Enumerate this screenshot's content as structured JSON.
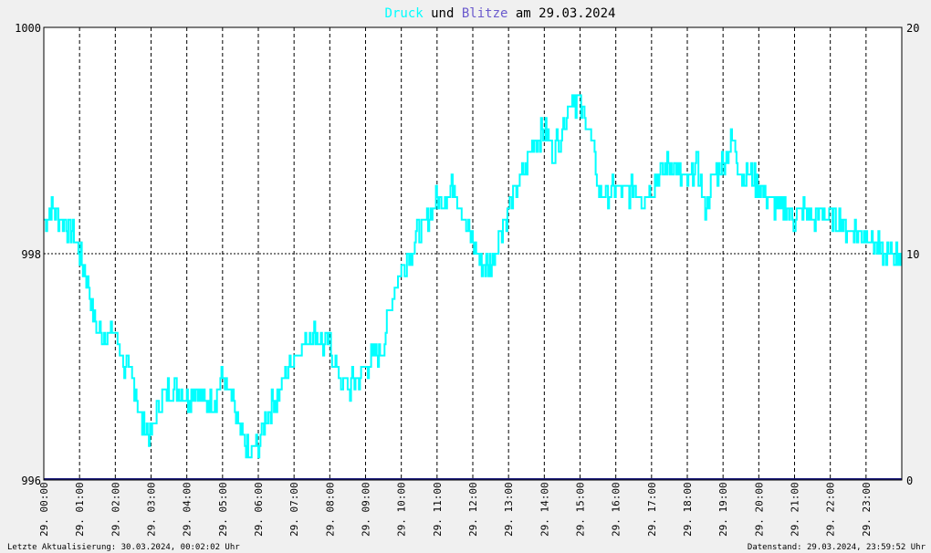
{
  "colors": {
    "druck": "#00ffff",
    "blitze": "#6a5acd",
    "text": "#000000",
    "frame": "#000000",
    "background": "#f0f0f0"
  },
  "title": {
    "druck": "Druck",
    "und": "und",
    "blitze": "Blitze",
    "rest": "am 29.03.2024"
  },
  "footer": {
    "left": "Letzte Aktualisierung: 30.03.2024, 00:02:02 Uhr",
    "right": "Datenstand: 29.03.2024, 23:59:52 Uhr"
  },
  "chart_data": {
    "type": "line",
    "title": "Druck und Blitze am 29.03.2024",
    "x_ticks": [
      "29. 00:00",
      "29. 01:00",
      "29. 02:00",
      "29. 03:00",
      "29. 04:00",
      "29. 05:00",
      "29. 06:00",
      "29. 07:00",
      "29. 08:00",
      "29. 09:00",
      "29. 10:00",
      "29. 11:00",
      "29. 12:00",
      "29. 13:00",
      "29. 14:00",
      "29. 15:00",
      "29. 16:00",
      "29. 17:00",
      "29. 18:00",
      "29. 19:00",
      "29. 20:00",
      "29. 21:00",
      "29. 22:00",
      "29. 23:00"
    ],
    "y_left": {
      "ticks": [
        "1000",
        "998",
        "996"
      ],
      "range": [
        996,
        1000
      ]
    },
    "y_right": {
      "ticks": [
        "20",
        "10",
        "0"
      ],
      "range": [
        0,
        20
      ]
    },
    "grid": true,
    "series": [
      {
        "name": "Druck",
        "axis": "left",
        "x": [
          "00:00",
          "00:15",
          "00:30",
          "00:45",
          "01:00",
          "01:15",
          "01:30",
          "01:45",
          "02:00",
          "02:15",
          "02:30",
          "02:45",
          "03:00",
          "03:15",
          "03:30",
          "03:45",
          "04:00",
          "04:15",
          "04:30",
          "04:45",
          "05:00",
          "05:15",
          "05:30",
          "05:45",
          "06:00",
          "06:15",
          "06:30",
          "06:45",
          "07:00",
          "07:15",
          "07:30",
          "07:45",
          "08:00",
          "08:15",
          "08:30",
          "08:45",
          "09:00",
          "09:15",
          "09:30",
          "09:45",
          "10:00",
          "10:15",
          "10:30",
          "10:45",
          "11:00",
          "11:15",
          "11:30",
          "11:45",
          "12:00",
          "12:15",
          "12:30",
          "12:45",
          "13:00",
          "13:15",
          "13:30",
          "13:45",
          "14:00",
          "14:15",
          "14:30",
          "14:45",
          "15:00",
          "15:15",
          "15:30",
          "15:45",
          "16:00",
          "16:15",
          "16:30",
          "16:45",
          "17:00",
          "17:15",
          "17:30",
          "17:45",
          "18:00",
          "18:15",
          "18:30",
          "18:45",
          "19:00",
          "19:15",
          "19:30",
          "19:45",
          "20:00",
          "20:15",
          "20:30",
          "20:45",
          "21:00",
          "21:15",
          "21:30",
          "21:45",
          "22:00",
          "22:15",
          "22:30",
          "22:45",
          "23:00",
          "23:15",
          "23:30",
          "23:45"
        ],
        "values": [
          998.3,
          998.4,
          998.3,
          998.2,
          998.0,
          997.7,
          997.3,
          997.3,
          997.3,
          997.0,
          996.9,
          996.5,
          996.4,
          996.7,
          996.8,
          996.8,
          996.7,
          996.8,
          996.7,
          996.7,
          996.9,
          996.7,
          996.4,
          996.2,
          996.3,
          996.6,
          996.7,
          996.9,
          997.1,
          997.2,
          997.3,
          997.2,
          997.2,
          996.9,
          996.8,
          996.9,
          997.0,
          997.1,
          997.2,
          997.6,
          997.9,
          998.0,
          998.2,
          998.3,
          998.5,
          998.5,
          998.6,
          998.3,
          998.1,
          997.9,
          997.9,
          998.2,
          998.4,
          998.6,
          998.8,
          999.0,
          999.1,
          998.9,
          999.1,
          999.4,
          999.3,
          999.1,
          998.6,
          998.5,
          998.6,
          998.5,
          998.6,
          998.5,
          998.6,
          998.7,
          998.8,
          998.7,
          998.6,
          998.8,
          998.4,
          998.7,
          998.8,
          999.0,
          998.7,
          998.7,
          998.6,
          998.5,
          998.4,
          998.4,
          998.3,
          998.4,
          998.3,
          998.4,
          998.3,
          998.3,
          998.2,
          998.2,
          998.2,
          998.1,
          998.0,
          998.0
        ]
      },
      {
        "name": "Blitze",
        "axis": "right",
        "x": [
          "00:00",
          "24:00"
        ],
        "values": [
          0,
          0
        ]
      }
    ]
  }
}
